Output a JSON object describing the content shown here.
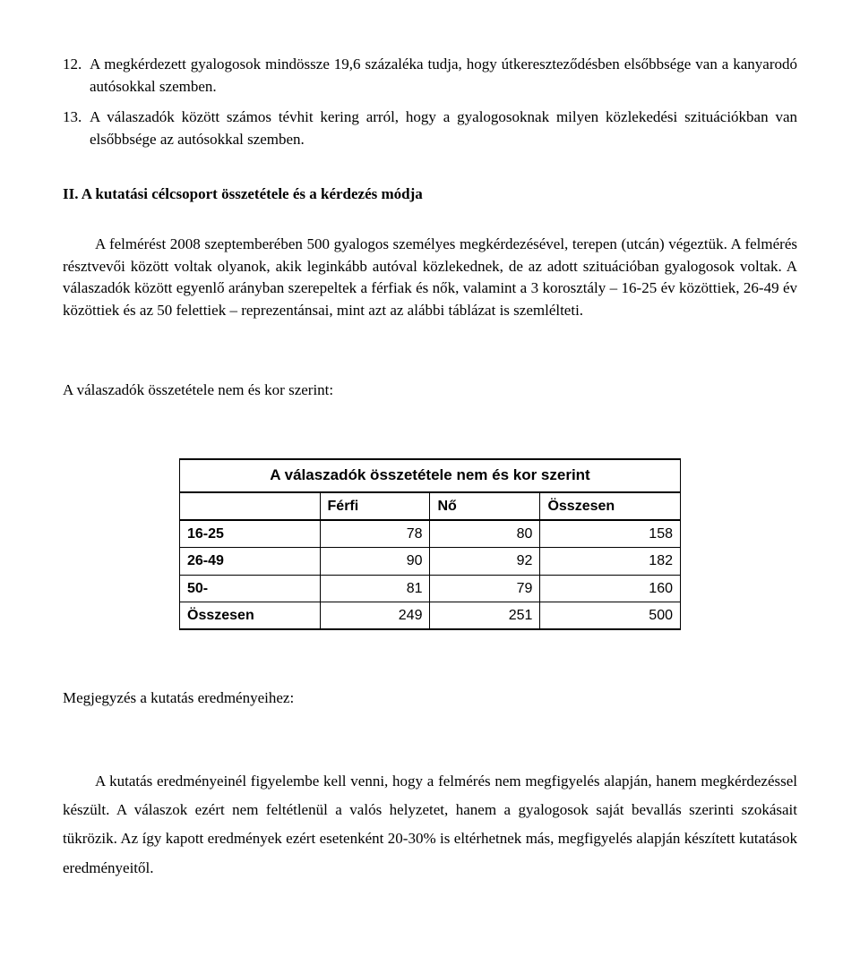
{
  "list": [
    {
      "num": "12.",
      "text": "A megkérdezett gyalogosok mindössze 19,6 százaléka tudja, hogy útkereszteződésben elsőbbsége van a kanyarodó autósokkal szemben."
    },
    {
      "num": "13.",
      "text": "A válaszadók között számos tévhit kering arról, hogy a gyalogosoknak milyen közlekedési szituációkban van elsőbbsége az autósokkal szemben."
    }
  ],
  "heading": "II. A kutatási célcsoport összetétele és a kérdezés módja",
  "para1": "A felmérést 2008 szeptemberében 500 gyalogos személyes megkérdezésével, terepen (utcán) végeztük. A felmérés résztvevői között voltak olyanok, akik leginkább autóval közlekednek, de az adott szituációban gyalogosok voltak. A válaszadók között egyenlő arányban szerepeltek a férfiak és nők, valamint a 3 korosztály – 16-25 év közöttiek, 26-49 év közöttiek és az 50 felettiek – reprezentánsai, mint azt az alábbi táblázat is szemlélteti.",
  "table_intro": "A válaszadók összetétele nem és kor szerint:",
  "table": {
    "title": "A válaszadók összetétele nem és kor szerint",
    "columns": [
      "",
      "Férfi",
      "Nő",
      "Összesen"
    ],
    "rows": [
      {
        "label": "16-25",
        "cells": [
          "78",
          "80",
          "158"
        ]
      },
      {
        "label": "26-49",
        "cells": [
          "90",
          "92",
          "182"
        ]
      },
      {
        "label": "50-",
        "cells": [
          "81",
          "79",
          "160"
        ]
      },
      {
        "label": "Összesen",
        "cells": [
          "249",
          "251",
          "500"
        ]
      }
    ],
    "col_widths_pct": [
      28,
      22,
      22,
      28
    ]
  },
  "note_heading": "Megjegyzés a kutatás eredményeihez:",
  "para2": "A kutatás eredményeinél figyelembe kell venni, hogy a felmérés nem megfigyelés alapján, hanem megkérdezéssel készült. A válaszok ezért nem feltétlenül a valós helyzetet, hanem a gyalogosok saját bevallás szerinti szokásait tükrözik. Az így kapott eredmények ezért esetenként 20-30% is eltérhetnek más, megfigyelés alapján készített kutatások eredményeitől."
}
